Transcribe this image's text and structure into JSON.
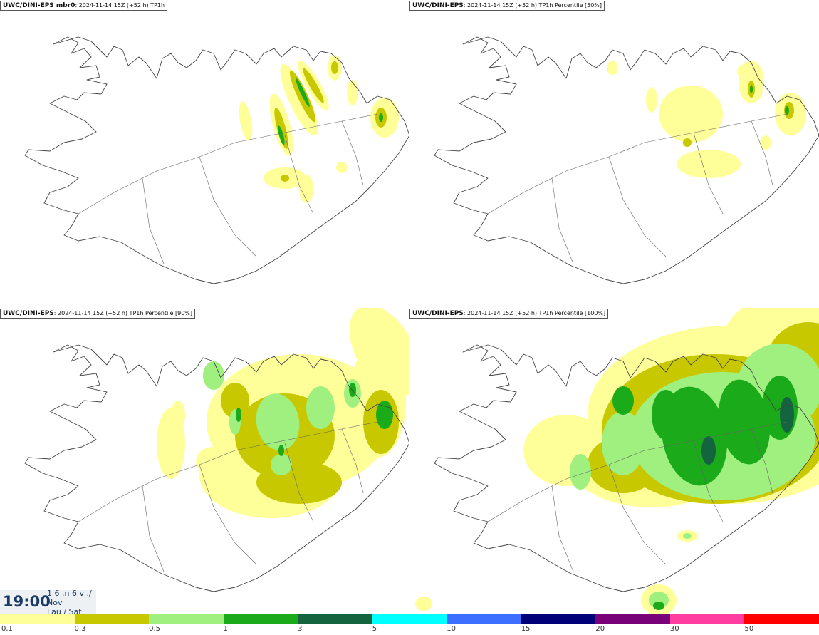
{
  "panels": [
    {
      "source": "UWC/DINI-EPS mbr0",
      "info": ": 2024-11-14 15Z (+52 h) TP1h",
      "level": 1
    },
    {
      "source": "UWC/DINI-EPS",
      "info": ": 2024-11-14 15Z (+52 h) TP1h Percentile [50%]",
      "level": 1
    },
    {
      "source": "UWC/DINI-EPS",
      "info": ": 2024-11-14 15Z (+52 h) TP1h Percentile [90%]",
      "level": 2
    },
    {
      "source": "UWC/DINI-EPS",
      "info": ": 2024-11-14 15Z (+52 h) TP1h Percentile [100%]",
      "level": 3
    }
  ],
  "valid_time": {
    "time": "19:00",
    "date_line1": "1 6 .n 6 v ./",
    "date_line2": "Nov",
    "date_line3": "Lau / Sat"
  },
  "legend": {
    "colors": [
      "#ffff99",
      "#c8c800",
      "#a0f080",
      "#1aaa1a",
      "#146440",
      "#00ffff",
      "#3c6eff",
      "#000078",
      "#780078",
      "#ff3ca0",
      "#ff0000"
    ],
    "ticks": [
      "0.1",
      "0.3",
      "0.5",
      "1",
      "3",
      "5",
      "10",
      "15",
      "20",
      "30",
      "50"
    ]
  }
}
